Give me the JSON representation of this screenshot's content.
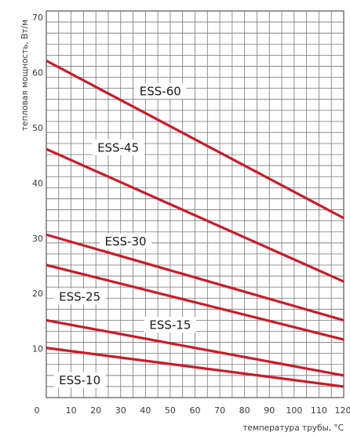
{
  "chart_data": {
    "type": "line",
    "title": "",
    "xlabel": "температура трубы, °C",
    "ylabel": "тепловая мощность, Вт/м",
    "xlim": [
      0,
      120
    ],
    "ylim": [
      2,
      72
    ],
    "x_ticks": [
      0,
      10,
      20,
      30,
      40,
      50,
      60,
      70,
      80,
      90,
      100,
      110,
      120
    ],
    "y_ticks": [
      10,
      20,
      30,
      40,
      50,
      60,
      70
    ],
    "grid": true,
    "line_color": "#cc1a28",
    "series": [
      {
        "name": "ESS-60",
        "x": [
          0,
          120
        ],
        "y": [
          63,
          34.5
        ]
      },
      {
        "name": "ESS-45",
        "x": [
          0,
          120
        ],
        "y": [
          47,
          23
        ]
      },
      {
        "name": "ESS-30",
        "x": [
          0,
          120
        ],
        "y": [
          31.5,
          16
        ]
      },
      {
        "name": "ESS-25",
        "x": [
          0,
          120
        ],
        "y": [
          26,
          12.5
        ]
      },
      {
        "name": "ESS-15",
        "x": [
          0,
          120
        ],
        "y": [
          16,
          6
        ]
      },
      {
        "name": "ESS-10",
        "x": [
          0,
          120
        ],
        "y": [
          11,
          4
        ]
      }
    ],
    "annotations": [
      {
        "text": "ESS-60",
        "x": 46,
        "y": 57.5
      },
      {
        "text": "ESS-45",
        "x": 29,
        "y": 47.3
      },
      {
        "text": "ESS-30",
        "x": 32,
        "y": 30.3
      },
      {
        "text": "ESS-25",
        "x": 13.5,
        "y": 20.3
      },
      {
        "text": "ESS-15",
        "x": 50,
        "y": 15.2
      },
      {
        "text": "ESS-10",
        "x": 13.5,
        "y": 5.2
      }
    ]
  }
}
